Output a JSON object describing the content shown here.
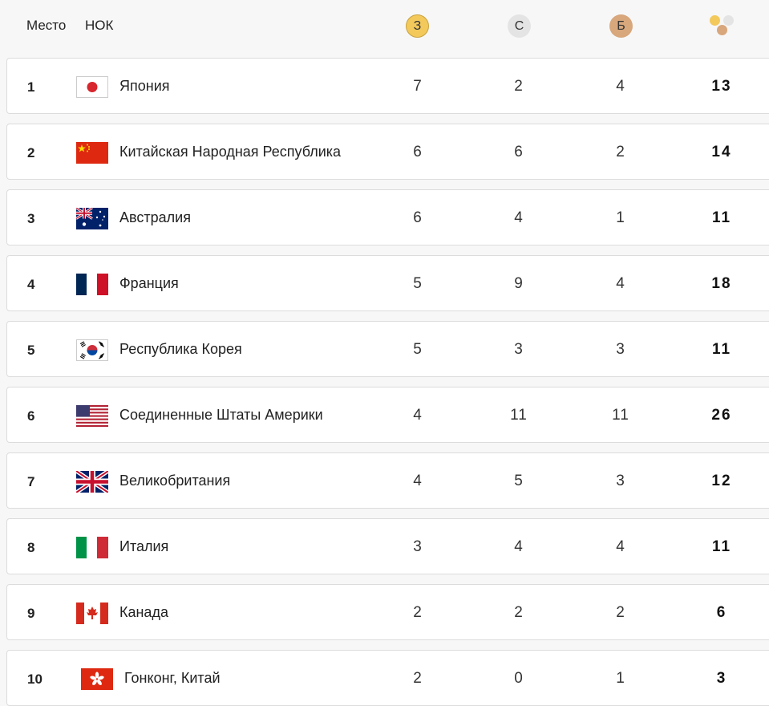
{
  "header": {
    "place_label": "Место",
    "noc_label": "НОК",
    "gold_label": "З",
    "silver_label": "С",
    "bronze_label": "Б",
    "total_icon": "medals-total-icon"
  },
  "colors": {
    "gold": "#f3c95c",
    "silver": "#e4e4e4",
    "bronze": "#d8a77c"
  },
  "rows": [
    {
      "rank": "1",
      "country": "Япония",
      "flag": "japan-flag-icon",
      "gold": "7",
      "silver": "2",
      "bronze": "4",
      "total": "13"
    },
    {
      "rank": "2",
      "country": "Китайская Народная Республика",
      "flag": "china-flag-icon",
      "gold": "6",
      "silver": "6",
      "bronze": "2",
      "total": "14"
    },
    {
      "rank": "3",
      "country": "Австралия",
      "flag": "australia-flag-icon",
      "gold": "6",
      "silver": "4",
      "bronze": "1",
      "total": "11"
    },
    {
      "rank": "4",
      "country": "Франция",
      "flag": "france-flag-icon",
      "gold": "5",
      "silver": "9",
      "bronze": "4",
      "total": "18"
    },
    {
      "rank": "5",
      "country": "Республика Корея",
      "flag": "korea-flag-icon",
      "gold": "5",
      "silver": "3",
      "bronze": "3",
      "total": "11"
    },
    {
      "rank": "6",
      "country": "Соединенные Штаты Америки",
      "flag": "usa-flag-icon",
      "gold": "4",
      "silver": "11",
      "bronze": "11",
      "total": "26"
    },
    {
      "rank": "7",
      "country": "Великобритания",
      "flag": "uk-flag-icon",
      "gold": "4",
      "silver": "5",
      "bronze": "3",
      "total": "12"
    },
    {
      "rank": "8",
      "country": "Италия",
      "flag": "italy-flag-icon",
      "gold": "3",
      "silver": "4",
      "bronze": "4",
      "total": "11"
    },
    {
      "rank": "9",
      "country": "Канада",
      "flag": "canada-flag-icon",
      "gold": "2",
      "silver": "2",
      "bronze": "2",
      "total": "6"
    },
    {
      "rank": "10",
      "country": "Гонконг, Китай",
      "flag": "hong-kong-flag-icon",
      "gold": "2",
      "silver": "0",
      "bronze": "1",
      "total": "3"
    }
  ]
}
